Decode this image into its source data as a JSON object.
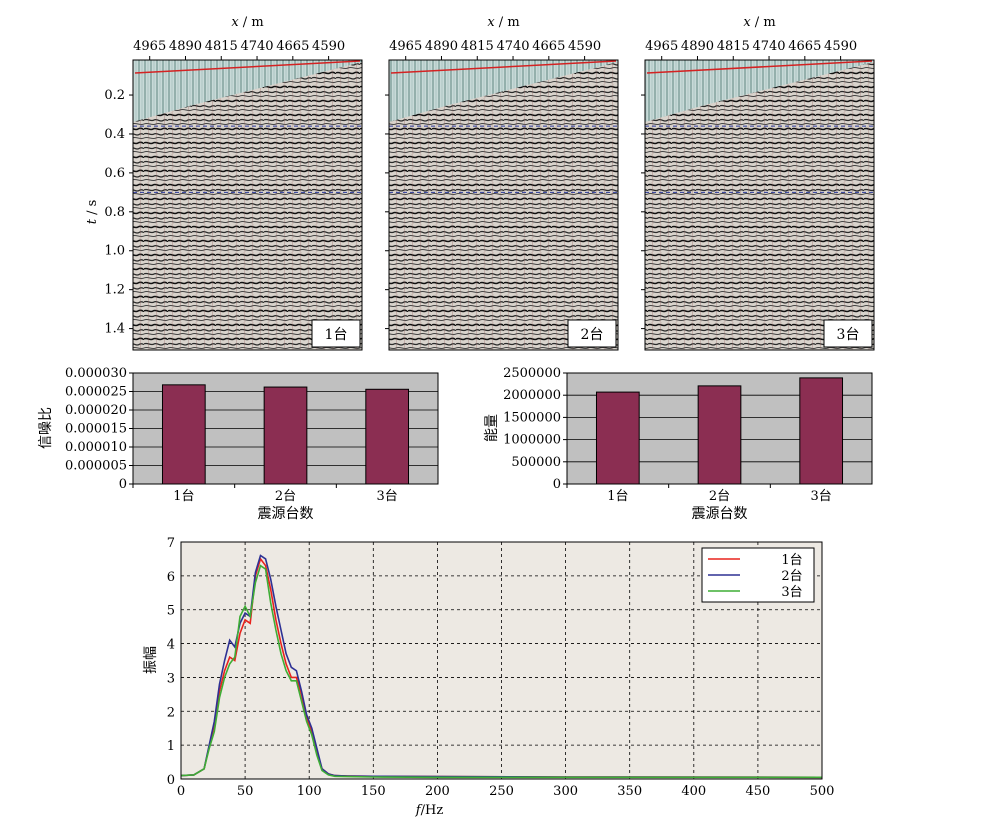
{
  "chart_data": [
    {
      "type": "heatmap",
      "panel": "seismic-gather",
      "xlabel": "x / m",
      "ylabel": "t / s",
      "x_ticks": [
        4965,
        4890,
        4815,
        4740,
        4665,
        4590
      ],
      "y_ticks": [
        0.2,
        0.4,
        0.6,
        0.8,
        1.0,
        1.2,
        1.4
      ],
      "xlim": [
        5000,
        4520
      ],
      "ylim": [
        0.02,
        1.51
      ],
      "panels": [
        {
          "label": "1台"
        },
        {
          "label": "2台"
        },
        {
          "label": "3台"
        }
      ]
    },
    {
      "type": "bar",
      "panel": "snr",
      "categories": [
        "1台",
        "2台",
        "3台"
      ],
      "values": [
        2.68e-05,
        2.62e-05,
        2.56e-05
      ],
      "ylim": [
        0,
        3e-05
      ],
      "y_ticks": [
        "0",
        "0.000005",
        "0.000010",
        "0.000015",
        "0.000020",
        "0.000025",
        "0.000030"
      ],
      "xlabel": "震源台数",
      "ylabel": "信噪比",
      "grid": true
    },
    {
      "type": "bar",
      "panel": "energy",
      "categories": [
        "1台",
        "2台",
        "3台"
      ],
      "values": [
        2070000,
        2210000,
        2390000
      ],
      "ylim": [
        0,
        2500000
      ],
      "y_ticks": [
        "0",
        "500000",
        "1000000",
        "1500000",
        "2000000",
        "2500000"
      ],
      "xlabel": "震源台数",
      "ylabel": "能量",
      "grid": true
    },
    {
      "type": "line",
      "panel": "spectrum",
      "xlabel": "f/Hz",
      "ylabel": "振幅",
      "xlim": [
        0,
        500
      ],
      "ylim": [
        0,
        7
      ],
      "x_ticks": [
        0,
        50,
        100,
        150,
        200,
        250,
        300,
        350,
        400,
        450,
        500
      ],
      "y_ticks": [
        0,
        1,
        2,
        3,
        4,
        5,
        6,
        7
      ],
      "grid": true,
      "legend": "top-right",
      "x": [
        0,
        10,
        18,
        22,
        26,
        30,
        34,
        38,
        42,
        46,
        50,
        54,
        58,
        62,
        66,
        70,
        74,
        78,
        82,
        86,
        90,
        94,
        98,
        102,
        106,
        110,
        115,
        120,
        130,
        150,
        200,
        300,
        500
      ],
      "series": [
        {
          "name": "1台",
          "color": "#e8231d",
          "values": [
            0.1,
            0.12,
            0.3,
            0.95,
            1.6,
            2.6,
            3.2,
            3.6,
            3.5,
            4.3,
            4.7,
            4.6,
            6.0,
            6.5,
            6.3,
            5.6,
            4.7,
            4.0,
            3.4,
            3.0,
            3.0,
            2.5,
            1.8,
            1.4,
            0.8,
            0.3,
            0.15,
            0.1,
            0.09,
            0.08,
            0.07,
            0.06,
            0.05
          ]
        },
        {
          "name": "2台",
          "color": "#2e3194",
          "values": [
            0.1,
            0.12,
            0.3,
            1.0,
            1.7,
            2.8,
            3.5,
            4.1,
            3.9,
            4.6,
            4.9,
            4.8,
            6.1,
            6.6,
            6.5,
            5.9,
            5.1,
            4.4,
            3.7,
            3.3,
            3.2,
            2.6,
            1.9,
            1.5,
            0.9,
            0.3,
            0.15,
            0.1,
            0.09,
            0.08,
            0.07,
            0.06,
            0.05
          ]
        },
        {
          "name": "3台",
          "color": "#3ead35",
          "values": [
            0.1,
            0.12,
            0.3,
            0.9,
            1.4,
            2.4,
            3.0,
            3.4,
            3.6,
            4.8,
            5.1,
            4.8,
            5.8,
            6.3,
            6.2,
            5.2,
            4.4,
            3.7,
            3.2,
            2.9,
            2.9,
            2.3,
            1.7,
            1.3,
            0.7,
            0.25,
            0.12,
            0.08,
            0.07,
            0.06,
            0.05,
            0.05,
            0.05
          ]
        }
      ]
    }
  ]
}
